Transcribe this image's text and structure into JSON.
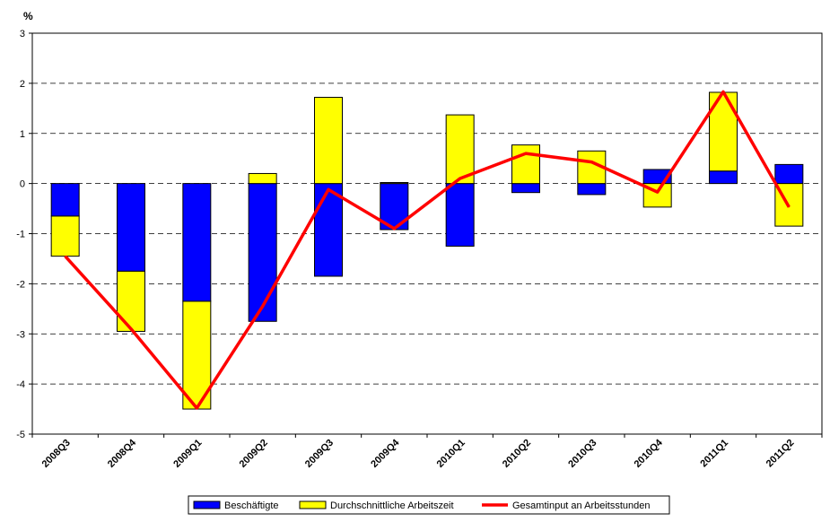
{
  "chart_data": {
    "type": "bar",
    "subtype": "stacked bar with line",
    "categories": [
      "2008Q3",
      "2008Q4",
      "2009Q1",
      "2009Q2",
      "2009Q3",
      "2009Q4",
      "2010Q1",
      "2010Q2",
      "2010Q3",
      "2010Q4",
      "2011Q1",
      "2011Q2"
    ],
    "ylabel": "%",
    "ylim": [
      -5,
      3
    ],
    "yticks": [
      3,
      2,
      1,
      0,
      -1,
      -2,
      -3,
      -4,
      -5
    ],
    "grid": "horizontal dashed",
    "legend_position": "bottom",
    "series": [
      {
        "name": "Beschäftigte",
        "kind": "bar",
        "color": "#0000ff",
        "values": [
          -0.65,
          -1.75,
          -2.35,
          -2.75,
          -1.85,
          -0.92,
          -1.25,
          -0.18,
          -0.22,
          0.28,
          0.25,
          0.38
        ]
      },
      {
        "name": "Durchschnittliche Arbeitszeit",
        "kind": "bar",
        "color": "#ffff00",
        "values": [
          -0.8,
          -1.2,
          -2.15,
          0.2,
          1.72,
          0.02,
          1.37,
          0.77,
          0.65,
          -0.47,
          1.57,
          -0.85
        ]
      },
      {
        "name": "Gesamtinput an Arbeitsstunden",
        "kind": "line",
        "color": "#ff0000",
        "values": [
          -1.45,
          -2.9,
          -4.48,
          -2.45,
          -0.12,
          -0.9,
          0.1,
          0.6,
          0.43,
          -0.17,
          1.83,
          -0.47
        ]
      }
    ]
  }
}
